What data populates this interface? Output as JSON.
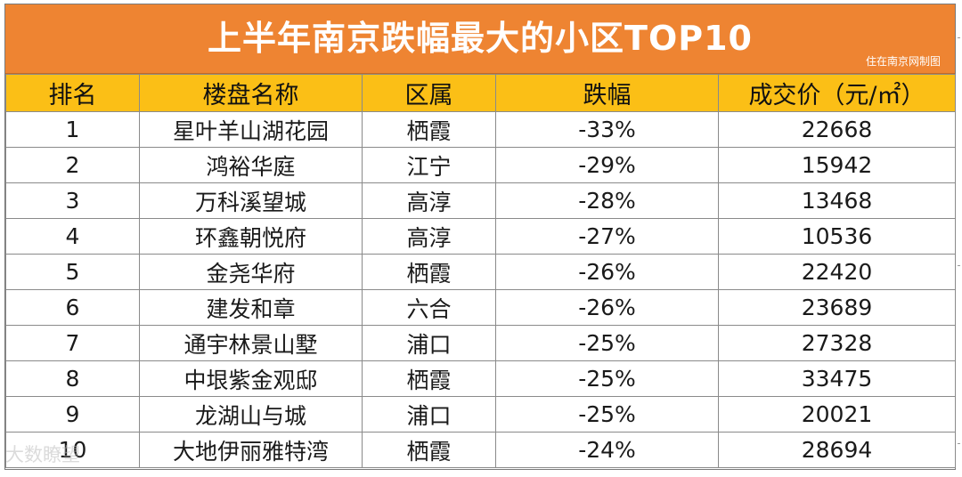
{
  "title": "上半年南京跌幅最大的小区TOP10",
  "credit": "住在南京网制图",
  "watermark": "大数瞭望",
  "table": {
    "headers": {
      "rank": "排名",
      "name": "楼盘名称",
      "district": "区属",
      "decline": "跌幅",
      "price": "成交价（元/㎡）"
    },
    "rows": [
      {
        "rank": "1",
        "name": "星叶羊山湖花园",
        "district": "栖霞",
        "decline": "-33%",
        "price": "22668"
      },
      {
        "rank": "2",
        "name": "鸿裕华庭",
        "district": "江宁",
        "decline": "-29%",
        "price": "15942"
      },
      {
        "rank": "3",
        "name": "万科溪望城",
        "district": "高淳",
        "decline": "-28%",
        "price": "13468"
      },
      {
        "rank": "4",
        "name": "环鑫朝悦府",
        "district": "高淳",
        "decline": "-27%",
        "price": "10536"
      },
      {
        "rank": "5",
        "name": "金尧华府",
        "district": "栖霞",
        "decline": "-26%",
        "price": "22420"
      },
      {
        "rank": "6",
        "name": "建发和章",
        "district": "六合",
        "decline": "-26%",
        "price": "23689"
      },
      {
        "rank": "7",
        "name": "通宇林景山墅",
        "district": "浦口",
        "decline": "-25%",
        "price": "27328"
      },
      {
        "rank": "8",
        "name": "中垠紫金观邸",
        "district": "栖霞",
        "decline": "-25%",
        "price": "33475"
      },
      {
        "rank": "9",
        "name": "龙湖山与城",
        "district": "浦口",
        "decline": "-25%",
        "price": "20021"
      },
      {
        "rank": "10",
        "name": "大地伊丽雅特湾",
        "district": "栖霞",
        "decline": "-24%",
        "price": "28694"
      }
    ]
  },
  "colors": {
    "title_bg": "#ee8432",
    "header_bg": "#fbbf16",
    "title_text": "#ffffff"
  }
}
